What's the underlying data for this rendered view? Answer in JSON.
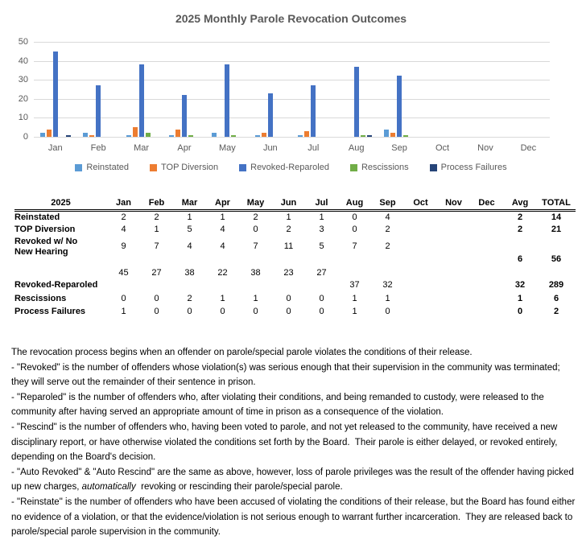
{
  "chart_data": {
    "type": "bar",
    "title": "2025 Monthly Parole Revocation Outcomes",
    "categories": [
      "Jan",
      "Feb",
      "Mar",
      "Apr",
      "May",
      "Jun",
      "Jul",
      "Aug",
      "Sep",
      "Oct",
      "Nov",
      "Dec"
    ],
    "series": [
      {
        "name": "Reinstated",
        "color": "#5B9BD5",
        "values": [
          2,
          2,
          1,
          1,
          2,
          1,
          1,
          0,
          4,
          null,
          null,
          null
        ]
      },
      {
        "name": "TOP Diversion",
        "color": "#ED7D31",
        "values": [
          4,
          1,
          5,
          4,
          0,
          2,
          3,
          0,
          2,
          null,
          null,
          null
        ]
      },
      {
        "name": "Revoked-Reparoled",
        "color": "#4472C4",
        "values": [
          45,
          27,
          38,
          22,
          38,
          23,
          27,
          37,
          32,
          null,
          null,
          null
        ]
      },
      {
        "name": "Rescissions",
        "color": "#70AD47",
        "values": [
          0,
          0,
          2,
          1,
          1,
          0,
          0,
          1,
          1,
          null,
          null,
          null
        ]
      },
      {
        "name": "Process Failures",
        "color": "#264478",
        "values": [
          1,
          0,
          0,
          0,
          0,
          0,
          0,
          1,
          0,
          null,
          null,
          null
        ]
      }
    ],
    "ylim": [
      0,
      50
    ],
    "yticks": [
      0,
      10,
      20,
      30,
      40,
      50
    ],
    "grid": true,
    "legend_position": "bottom",
    "xlabel": "",
    "ylabel": ""
  },
  "table": {
    "year_header": "2025",
    "columns": [
      "Jan",
      "Feb",
      "Mar",
      "Apr",
      "May",
      "Jun",
      "Jul",
      "Aug",
      "Sep",
      "Oct",
      "Nov",
      "Dec",
      "Avg",
      "TOTAL"
    ],
    "rows": [
      {
        "label": "Reinstated",
        "values": [
          "2",
          "2",
          "1",
          "1",
          "2",
          "1",
          "1",
          "0",
          "4",
          "",
          "",
          "",
          "2",
          "14"
        ]
      },
      {
        "label": "TOP Diversion",
        "values": [
          "4",
          "1",
          "5",
          "4",
          "0",
          "2",
          "3",
          "0",
          "2",
          "",
          "",
          "",
          "2",
          "21"
        ]
      },
      {
        "label": "Revoked w/ No New Hearing",
        "values": [
          "9",
          "7",
          "4",
          "4",
          "7",
          "11",
          "5",
          "7",
          "2",
          "",
          "",
          "",
          "6",
          "56"
        ]
      },
      {
        "label": "Revoked-Reparoled",
        "values": [
          "45",
          "27",
          "38",
          "22",
          "38",
          "23",
          "27",
          "37",
          "32",
          "",
          "",
          "",
          "32",
          "289"
        ]
      },
      {
        "label": "Rescissions",
        "values": [
          "0",
          "0",
          "2",
          "1",
          "1",
          "0",
          "0",
          "1",
          "1",
          "",
          "",
          "",
          "1",
          "6"
        ]
      },
      {
        "label": "Process Failures",
        "values": [
          "1",
          "0",
          "0",
          "0",
          "0",
          "0",
          "0",
          "1",
          "0",
          "",
          "",
          "",
          "0",
          "2"
        ]
      }
    ]
  },
  "notes": [
    [
      {
        "t": "The revocation process begins when an offender on parole/special parole violates the conditions of their release."
      }
    ],
    [
      {
        "t": "- \"Revoked\" is the number of offenders whose violation(s) was serious enough that their supervision in the community was terminated; they will serve out the remainder of their sentence in prison."
      }
    ],
    [
      {
        "t": "- \"Reparoled\" is the number of offenders who, after violating their conditions, and being remanded to custody, were released to the community after having served an appropriate amount of time in prison as a consequence of the violation."
      }
    ],
    [
      {
        "t": "- \"Rescind\" is the number of offenders who, having been voted to parole, and not yet released to the community, have received a new disciplinary report, or have otherwise violated the conditions set forth by the Board.  Their parole is either delayed, or revoked entirely, depending on the Board's decision."
      }
    ],
    [
      {
        "t": "- \"Auto Revoked\" & \"Auto Rescind\" are the same as above, however, loss of parole privileges was the result of the offender having picked up new charges, "
      },
      {
        "t": "automatically",
        "i": true
      },
      {
        "t": "  revoking or rescinding their parole/special parole."
      }
    ],
    [
      {
        "t": "- \"Reinstate\" is the number of offenders who have been accused of violating the conditions of their release, but the Board has found either no evidence of a violation, or that the evidence/violation is not serious enough to warrant further incarceration.  They are released back to parole/special parole supervision in the community."
      }
    ]
  ],
  "colors": {
    "title_text": "#595959",
    "axis_text": "#595959",
    "gridline": "#D9D9D9",
    "table_text": "#000000"
  }
}
